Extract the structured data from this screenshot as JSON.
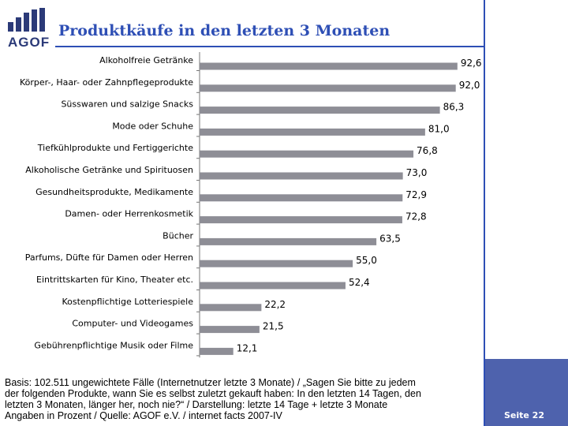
{
  "logo": {
    "text": "AGOF"
  },
  "title": "Produktkäufe in den letzten 3 Monaten",
  "chart_data": {
    "type": "bar",
    "orientation": "horizontal",
    "title": "Produktkäufe in den letzten 3 Monaten",
    "categories": [
      "Alkoholfreie Getränke",
      "Körper-, Haar- oder Zahnpflegeprodukte",
      "Süsswaren und salzige Snacks",
      "Mode oder Schuhe",
      "Tiefkühlprodukte und Fertiggerichte",
      "Alkoholische Getränke und Spirituosen",
      "Gesundheitsprodukte, Medikamente",
      "Damen- oder Herrenkosmetik",
      "Bücher",
      "Parfums, Düfte für Damen oder Herren",
      "Eintrittskarten für Kino, Theater etc.",
      "Kostenpflichtige Lotteriespiele",
      "Computer- und Videogames",
      "Gebührenpflichtige Musik oder Filme"
    ],
    "values": [
      92.6,
      92.0,
      86.3,
      81.0,
      76.8,
      73.0,
      72.9,
      72.8,
      63.5,
      55.0,
      52.4,
      22.2,
      21.5,
      12.1
    ],
    "value_labels": [
      "92,6",
      "92,0",
      "86,3",
      "81,0",
      "76,8",
      "73,0",
      "72,9",
      "72,8",
      "63,5",
      "55,0",
      "52,4",
      "22,2",
      "21,5",
      "12,1"
    ],
    "xlim": [
      0,
      100
    ],
    "bar_color": "#8e8e96",
    "xlabel": "",
    "ylabel": ""
  },
  "footnote": [
    "Basis: 102.511 ungewichtete Fälle (Internetnutzer letzte 3 Monate) / „Sagen Sie bitte zu jedem",
    "der folgenden Produkte, wann Sie es selbst zuletzt gekauft haben: In den letzten 14 Tagen, den",
    "letzten 3 Monaten, länger her, noch nie?“ / Darstellung: letzte 14 Tage + letzte 3 Monate",
    "Angaben in Prozent / Quelle: AGOF e.V. / internet facts 2007-IV"
  ],
  "page": "Seite 22",
  "colors": {
    "accent": "#2e4fb5",
    "footer": "#4e62ad",
    "logo": "#2b3a78"
  }
}
